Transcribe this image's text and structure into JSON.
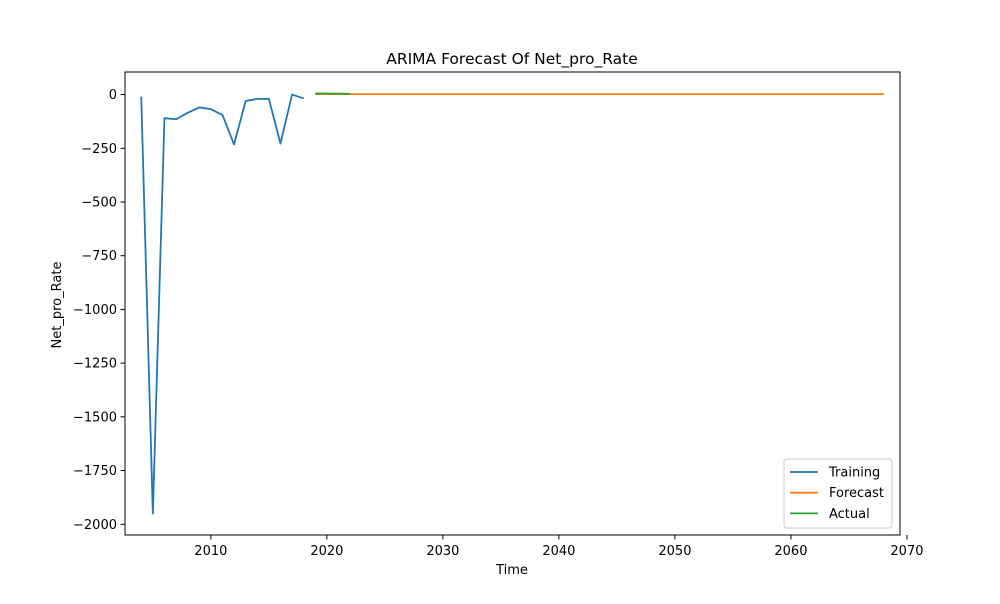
{
  "chart_data": {
    "type": "line",
    "title": "ARIMA Forecast Of Net_pro_Rate",
    "xlabel": "Time",
    "ylabel": "Net_pro_Rate",
    "xlim": [
      2002.6,
      2069.4
    ],
    "ylim": [
      -2050,
      105
    ],
    "x_ticks": [
      2010,
      2020,
      2030,
      2040,
      2050,
      2060,
      2070
    ],
    "y_ticks": [
      0,
      -250,
      -500,
      -750,
      -1000,
      -1250,
      -1500,
      -1750,
      -2000
    ],
    "x_tick_labels": [
      "2010",
      "2020",
      "2030",
      "2040",
      "2050",
      "2060",
      "2070"
    ],
    "y_tick_labels": [
      "0",
      "−250",
      "−500",
      "−750",
      "−1000",
      "−1250",
      "−1500",
      "−1750",
      "−2000"
    ],
    "grid": false,
    "legend_position": "lower-right",
    "series": [
      {
        "name": "Training",
        "color": "#1f77b4",
        "x": [
          2004,
          2005,
          2006,
          2007,
          2008,
          2009,
          2010,
          2011,
          2012,
          2013,
          2014,
          2015,
          2016,
          2017,
          2018
        ],
        "y": [
          -10,
          -1950,
          -110,
          -115,
          -85,
          -60,
          -68,
          -95,
          -232,
          -30,
          -20,
          -20,
          -228,
          0,
          -18
        ]
      },
      {
        "name": "Forecast",
        "color": "#ff7f0e",
        "x": [
          2019,
          2068
        ],
        "y": [
          2,
          2
        ]
      },
      {
        "name": "Actual",
        "color": "#2ca02c",
        "x": [
          2019,
          2020,
          2021,
          2022
        ],
        "y": [
          5,
          5,
          4,
          3
        ]
      }
    ]
  }
}
